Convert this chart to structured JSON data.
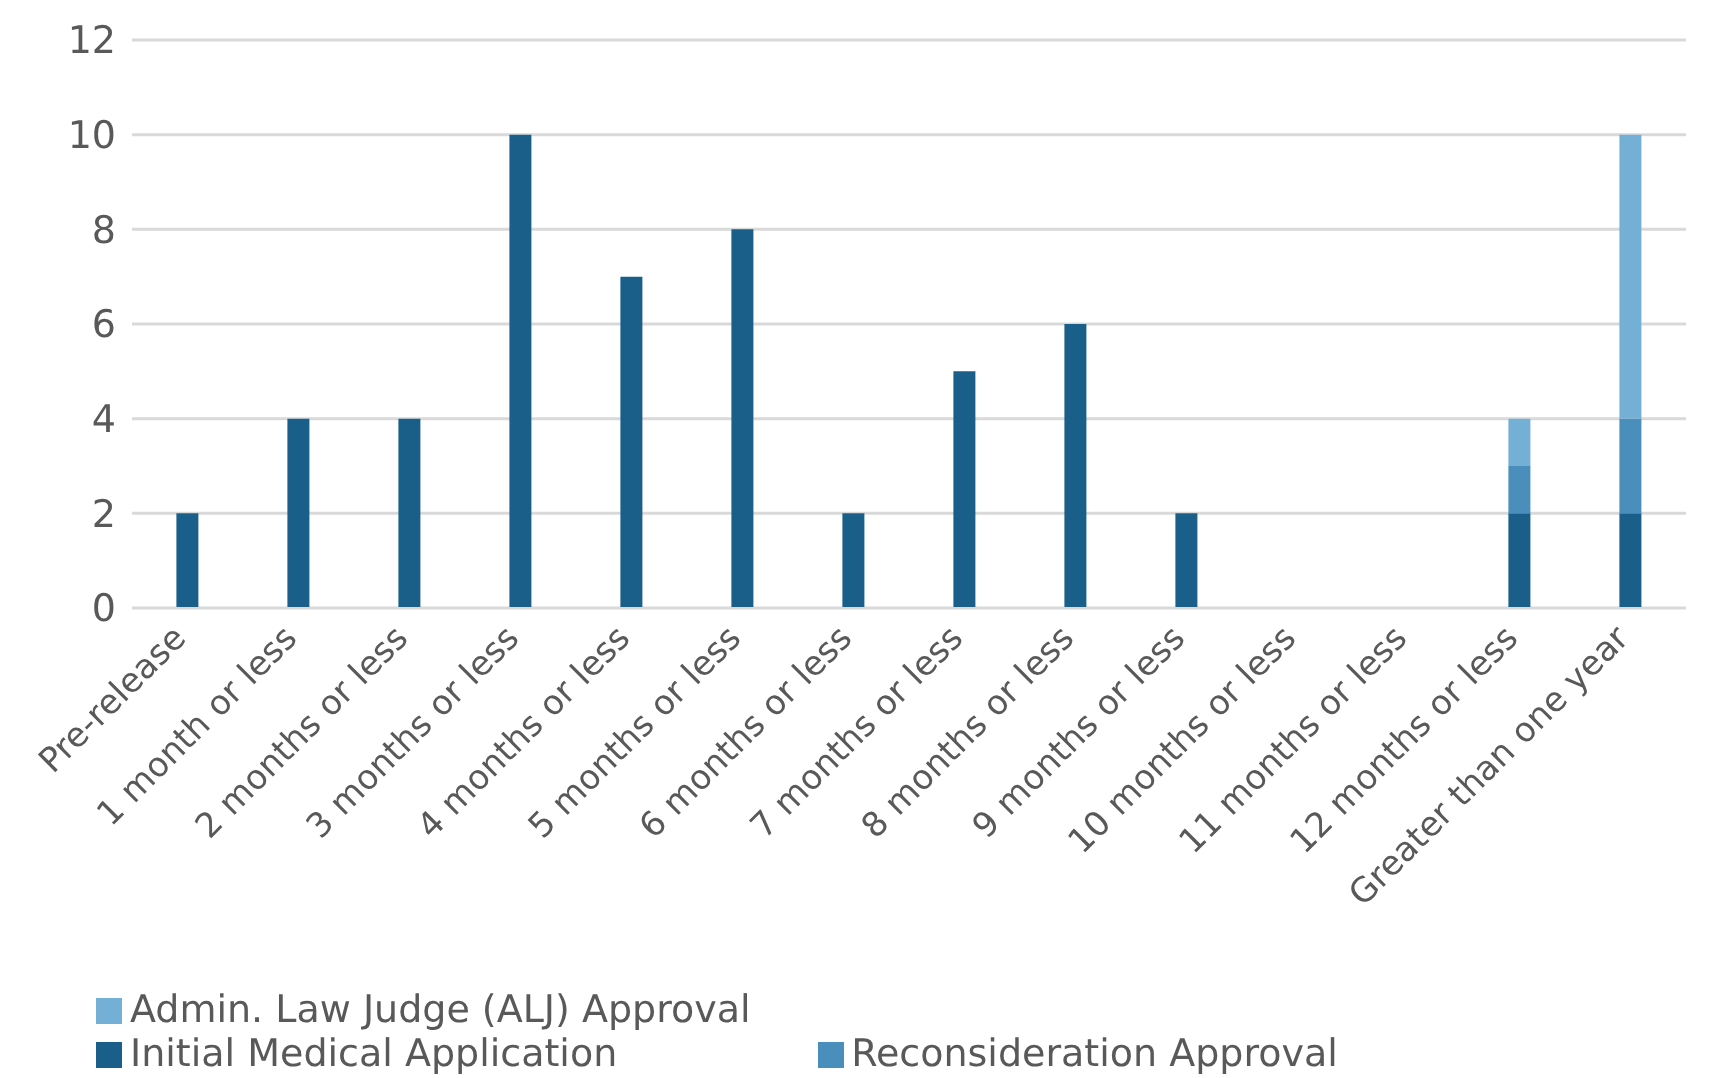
{
  "chart_data": {
    "type": "bar",
    "stacked": true,
    "categories": [
      "Pre-release",
      "1 month or less",
      "2 months or less",
      "3 months or less",
      "4 months or less",
      "5 months or less",
      "6 months or less",
      "7 months or less",
      "8 months or less",
      "9 months or less",
      "10 months or less",
      "11 months or less",
      "12 months or less",
      "Greater than one year"
    ],
    "series": [
      {
        "name": "Initial Medical Application",
        "color": "#1a5f8a",
        "values": [
          2,
          4,
          4,
          10,
          7,
          8,
          2,
          5,
          6,
          2,
          0,
          0,
          2,
          2
        ]
      },
      {
        "name": "Reconsideration Approval",
        "color": "#4a8fbb",
        "values": [
          0,
          0,
          0,
          0,
          0,
          0,
          0,
          0,
          0,
          0,
          0,
          0,
          1,
          2
        ]
      },
      {
        "name": "Admin. Law Judge (ALJ) Approval",
        "color": "#74afd6",
        "values": [
          0,
          0,
          0,
          0,
          0,
          0,
          0,
          0,
          0,
          0,
          0,
          0,
          1,
          6
        ]
      }
    ],
    "ylim": [
      0,
      12
    ],
    "yticks": [
      0,
      2,
      4,
      6,
      8,
      10,
      12
    ],
    "grid": "y",
    "legend": "bottom"
  }
}
